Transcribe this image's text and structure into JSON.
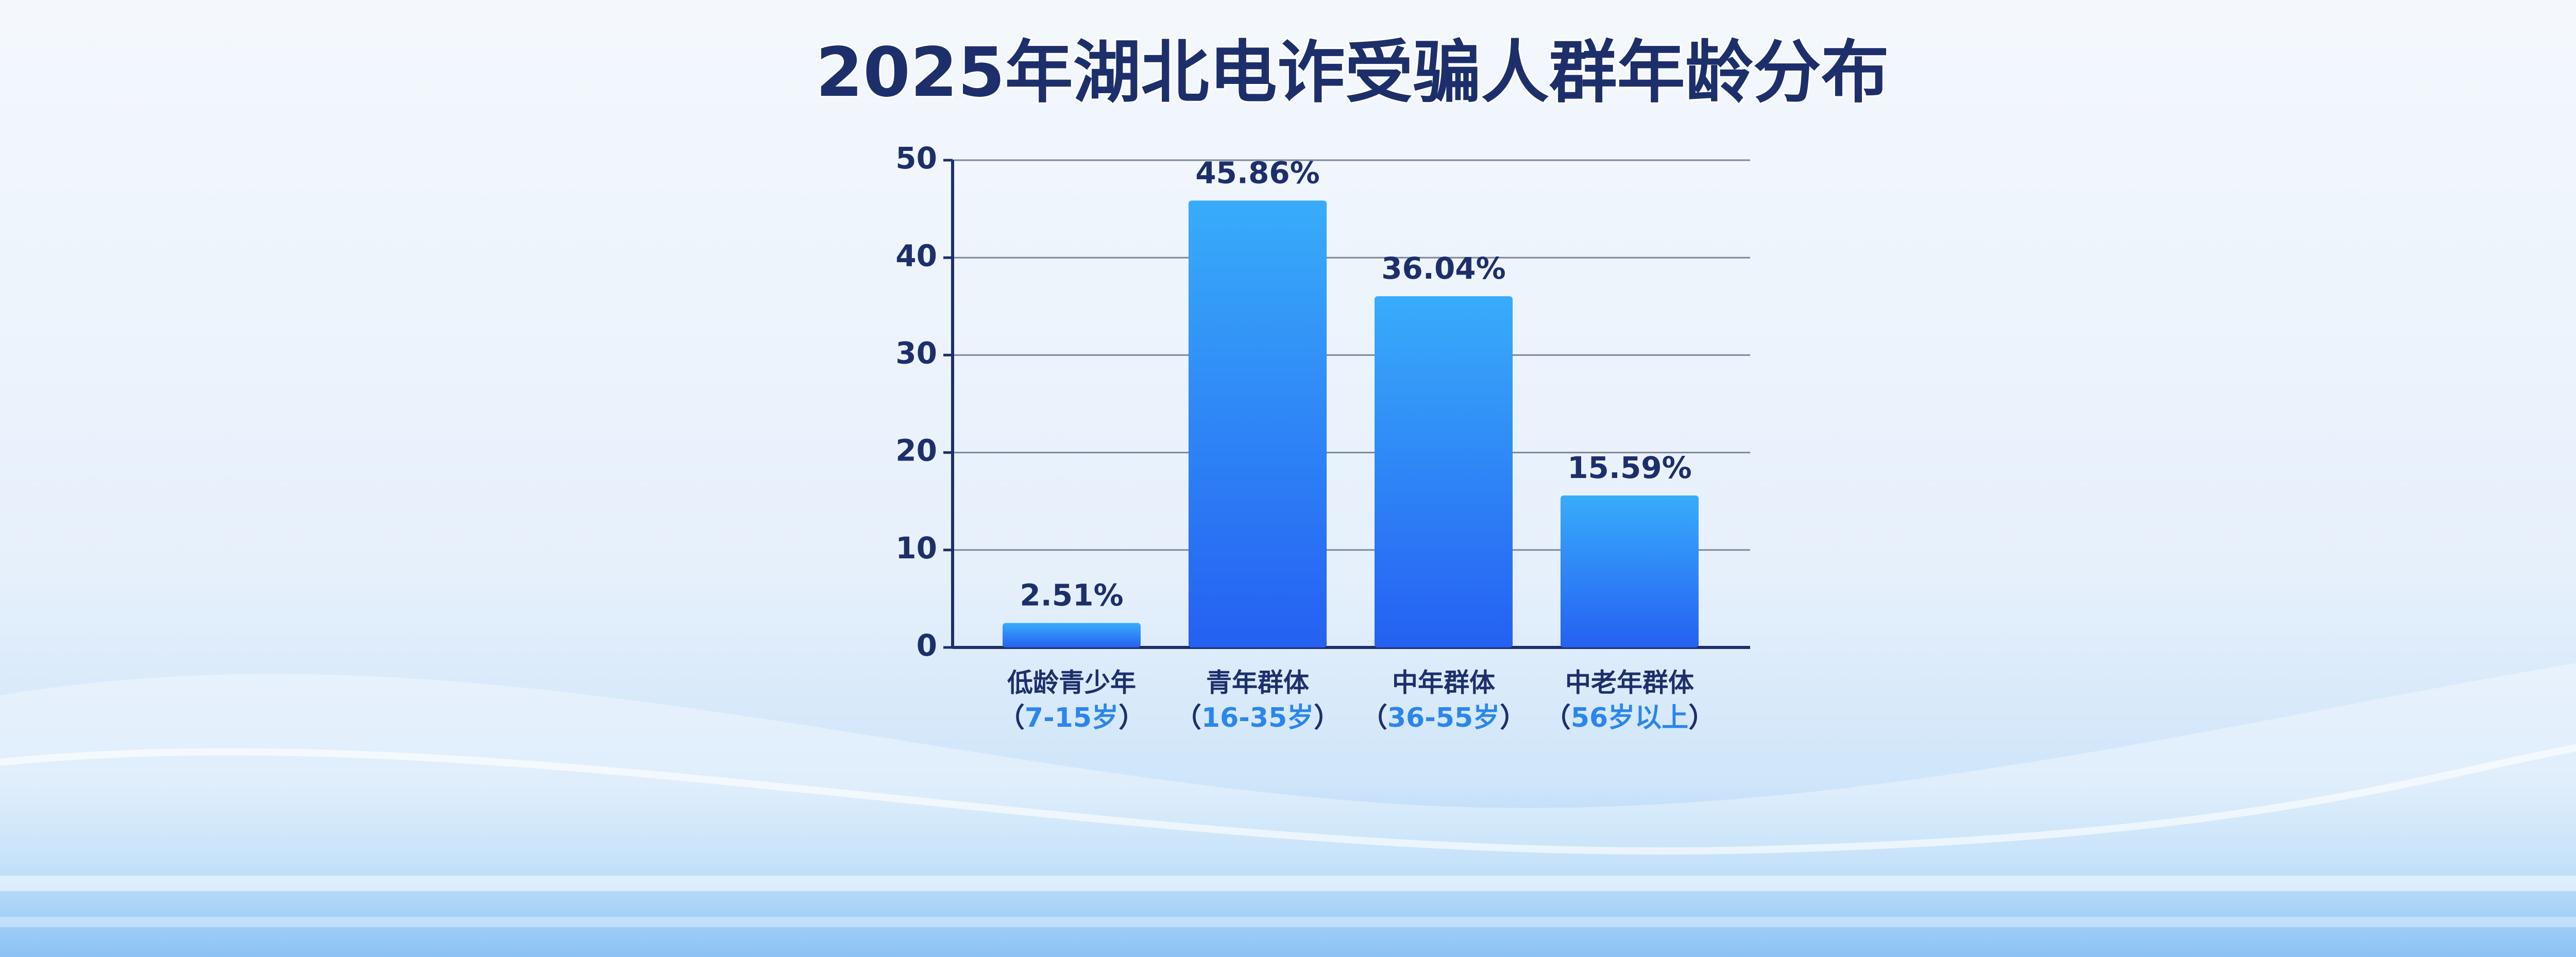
{
  "chart_data": {
    "type": "bar",
    "title": "2025年湖北电诈受骗人群年龄分布",
    "categories": [
      "低龄青少年",
      "青年群体",
      "中年群体",
      "中老年群体"
    ],
    "category_ranges": [
      "7-15岁",
      "16-35岁",
      "36-55岁",
      "56岁以上"
    ],
    "range_brackets": [
      "（",
      "）"
    ],
    "values": [
      2.51,
      45.86,
      36.04,
      15.59
    ],
    "value_labels": [
      "2.51%",
      "45.86%",
      "36.04%",
      "15.59%"
    ],
    "color": "#2a6ff2",
    "ylim": [
      0,
      50
    ],
    "yticks": [
      0,
      10,
      20,
      30,
      40,
      50
    ],
    "grid": true
  }
}
